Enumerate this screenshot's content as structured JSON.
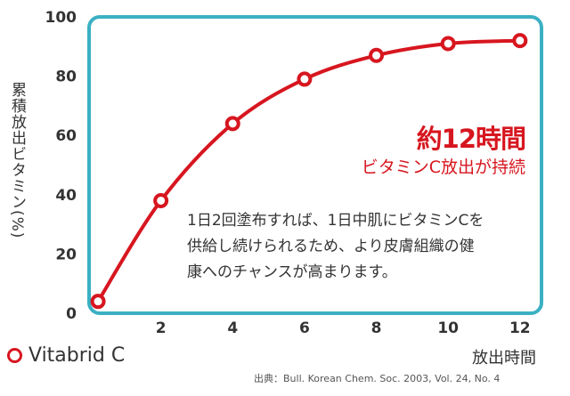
{
  "chart_data": {
    "type": "line",
    "title": "",
    "xlabel": "放出時間",
    "ylabel": "累積放出ビタミン(%)",
    "xlim": [
      0,
      12.6
    ],
    "ylim": [
      0,
      100
    ],
    "xticks": [
      "2",
      "4",
      "6",
      "8",
      "10",
      "12"
    ],
    "yticks": [
      "0",
      "20",
      "40",
      "60",
      "80",
      "100"
    ],
    "grid": false,
    "legend": "bottom-left",
    "series": [
      {
        "name": "Vitabrid C",
        "color": "#d7161f",
        "x": [
          0.25,
          2,
          4,
          6,
          8,
          10,
          12
        ],
        "y": [
          4,
          38,
          64,
          79,
          87,
          91,
          92
        ]
      }
    ],
    "annotations": {
      "title": "約12時間",
      "subtitle": "ビタミンC放出が持続",
      "body": [
        "1日2回塗布すれば、1日中肌にビタミンCを",
        "供給し続けられるため、より皮膚組織の健",
        "康へのチャンスが高まります。"
      ]
    },
    "source": "出典：Bull. Korean Chem. Soc. 2003, Vol. 24, No. 4"
  },
  "colors": {
    "frame": "#3bb0c3",
    "line": "#d7161f",
    "text": "#333333"
  }
}
